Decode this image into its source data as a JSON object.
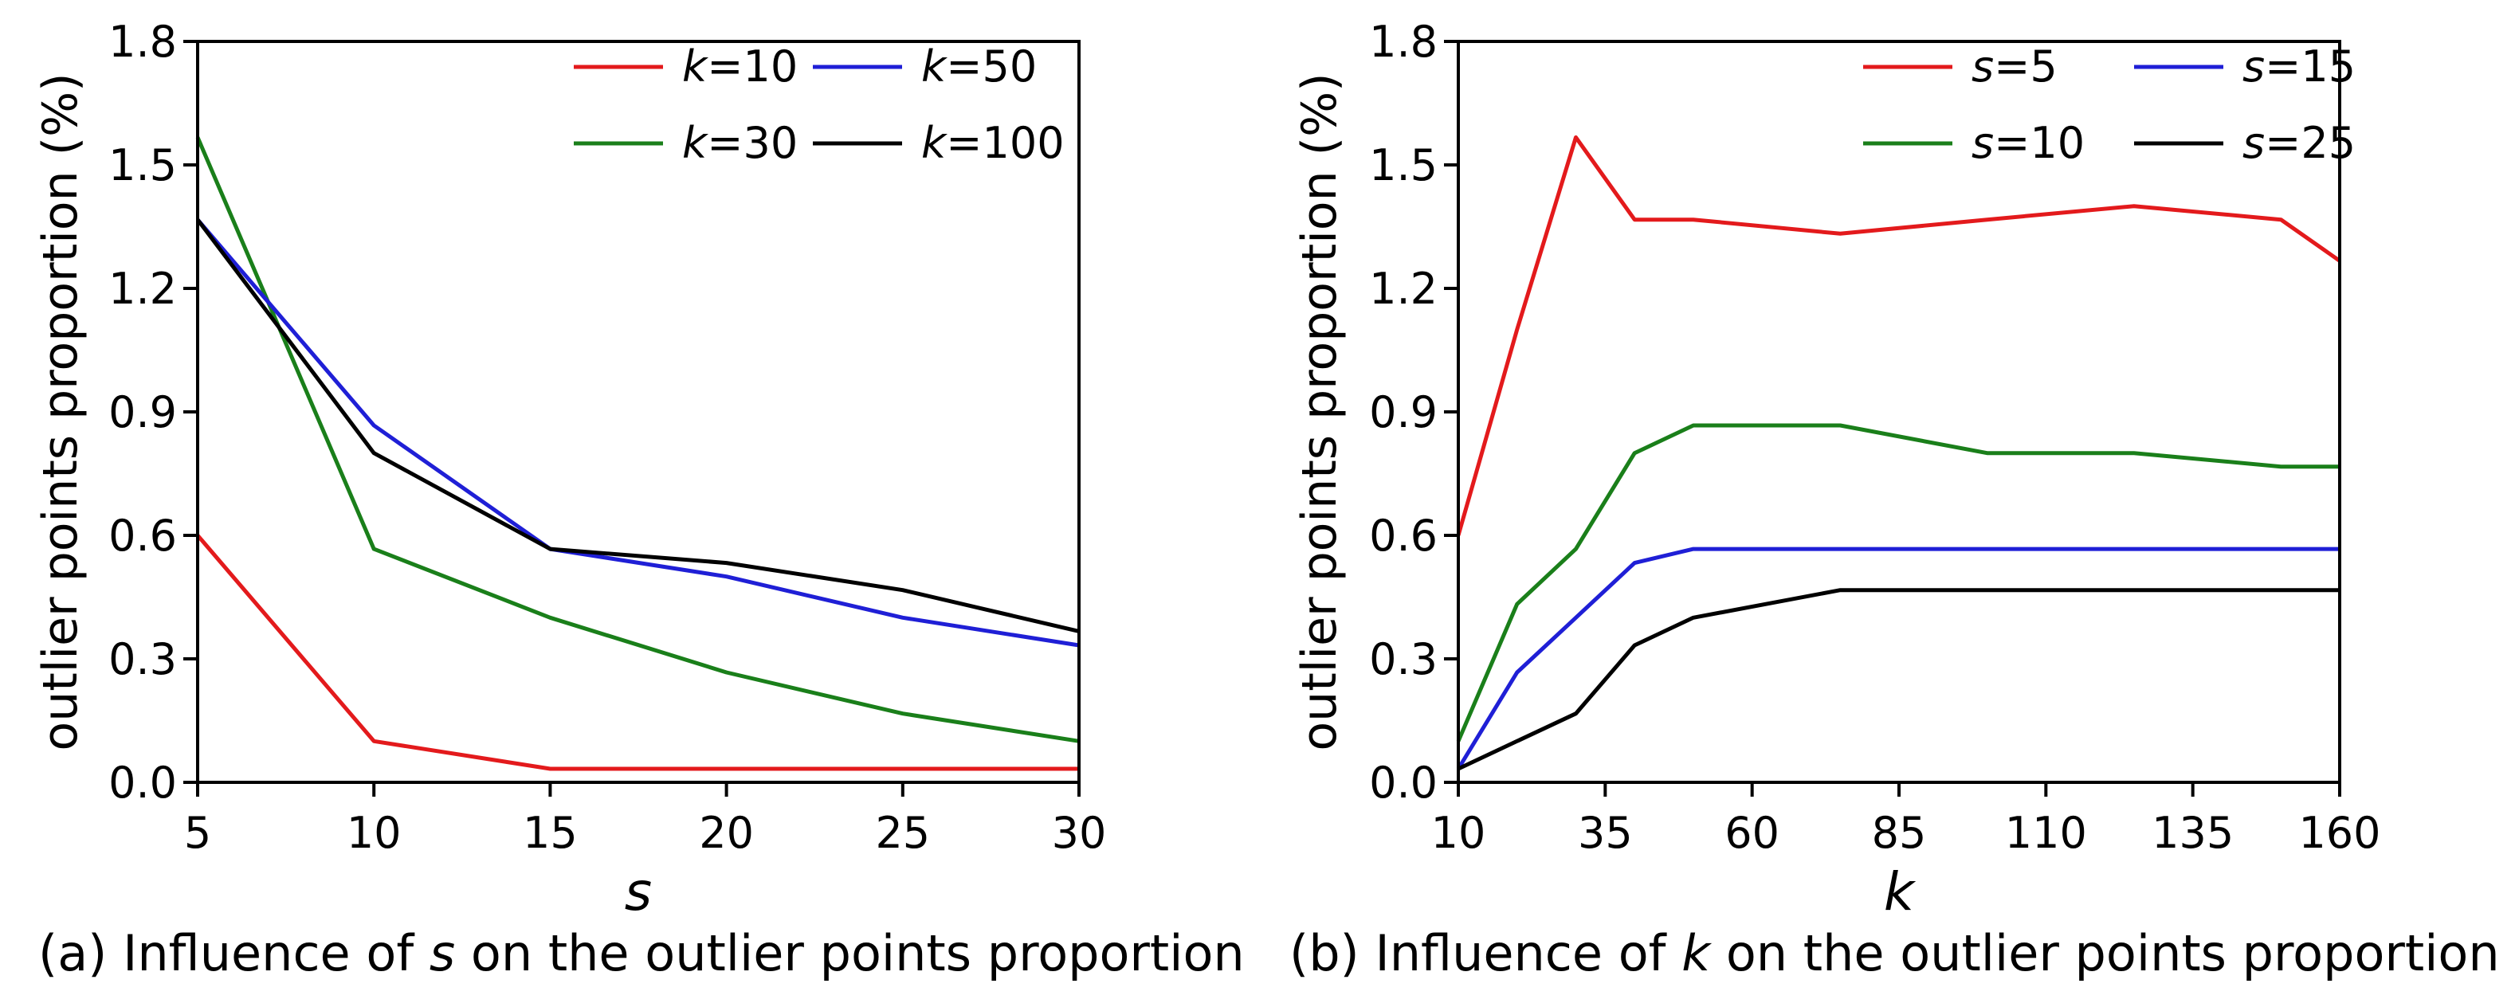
{
  "chart_data": [
    {
      "type": "line",
      "panel": "a",
      "xvar": "s",
      "xlabel": "s",
      "ylabel": "outlier points proportion (%)",
      "xlim": [
        5,
        30
      ],
      "ylim": [
        0.0,
        1.8
      ],
      "xticks": [
        5,
        10,
        15,
        20,
        25,
        30
      ],
      "yticks": [
        0.0,
        0.3,
        0.6,
        0.9,
        1.2,
        1.5,
        1.8
      ],
      "ytick_labels": [
        "0.0",
        "0.3",
        "0.6",
        "0.9",
        "1.2",
        "1.5",
        "1.8"
      ],
      "legend_position": "top-right",
      "legend_columns": 2,
      "caption": {
        "before": "(a) Influence of ",
        "var": "s",
        "after": " on the outlier points proportion"
      },
      "series": [
        {
          "var": "k",
          "value": "10",
          "color": "#e31a1c",
          "x": [
            5,
            10,
            15,
            20,
            25,
            30
          ],
          "y": [
            0.6,
            0.1,
            0.033,
            0.033,
            0.033,
            0.033
          ]
        },
        {
          "var": "k",
          "value": "30",
          "color": "#1a7f1a",
          "x": [
            5,
            10,
            15,
            20,
            25,
            30
          ],
          "y": [
            1.567,
            0.567,
            0.4,
            0.267,
            0.167,
            0.1
          ]
        },
        {
          "var": "k",
          "value": "50",
          "color": "#1f1fd6",
          "x": [
            5,
            10,
            15,
            20,
            25,
            30
          ],
          "y": [
            1.367,
            0.867,
            0.567,
            0.5,
            0.4,
            0.333
          ]
        },
        {
          "var": "k",
          "value": "100",
          "color": "#000000",
          "x": [
            5,
            10,
            15,
            20,
            25,
            30
          ],
          "y": [
            1.367,
            0.8,
            0.567,
            0.533,
            0.467,
            0.367
          ]
        }
      ]
    },
    {
      "type": "line",
      "panel": "b",
      "xvar": "k",
      "xlabel": "k",
      "ylabel": "outlier points proportion (%)",
      "xlim": [
        10,
        160
      ],
      "ylim": [
        0.0,
        1.8
      ],
      "xticks": [
        10,
        35,
        60,
        85,
        110,
        135,
        160
      ],
      "yticks": [
        0.0,
        0.3,
        0.6,
        0.9,
        1.2,
        1.5,
        1.8
      ],
      "ytick_labels": [
        "0.0",
        "0.3",
        "0.6",
        "0.9",
        "1.2",
        "1.5",
        "1.8"
      ],
      "legend_position": "top-right",
      "legend_columns": 2,
      "caption": {
        "before": "(b) Influence of ",
        "var": "k",
        "after": " on the outlier points proportion"
      },
      "series": [
        {
          "var": "s",
          "value": "5",
          "color": "#e31a1c",
          "x": [
            10,
            20,
            30,
            40,
            50,
            75,
            100,
            125,
            150,
            160
          ],
          "y": [
            0.6,
            1.1,
            1.567,
            1.367,
            1.367,
            1.333,
            1.367,
            1.4,
            1.367,
            1.267
          ]
        },
        {
          "var": "s",
          "value": "10",
          "color": "#1a7f1a",
          "x": [
            10,
            20,
            30,
            40,
            50,
            75,
            100,
            125,
            150,
            160
          ],
          "y": [
            0.1,
            0.433,
            0.567,
            0.8,
            0.867,
            0.867,
            0.8,
            0.8,
            0.767,
            0.767
          ]
        },
        {
          "var": "s",
          "value": "15",
          "color": "#1f1fd6",
          "x": [
            10,
            20,
            30,
            40,
            50,
            75,
            100,
            125,
            150,
            160
          ],
          "y": [
            0.033,
            0.267,
            0.4,
            0.533,
            0.567,
            0.567,
            0.567,
            0.567,
            0.567,
            0.567
          ]
        },
        {
          "var": "s",
          "value": "25",
          "color": "#000000",
          "x": [
            10,
            20,
            30,
            40,
            50,
            75,
            100,
            125,
            150,
            160
          ],
          "y": [
            0.033,
            0.1,
            0.167,
            0.333,
            0.4,
            0.467,
            0.467,
            0.467,
            0.467,
            0.467
          ]
        }
      ]
    }
  ]
}
